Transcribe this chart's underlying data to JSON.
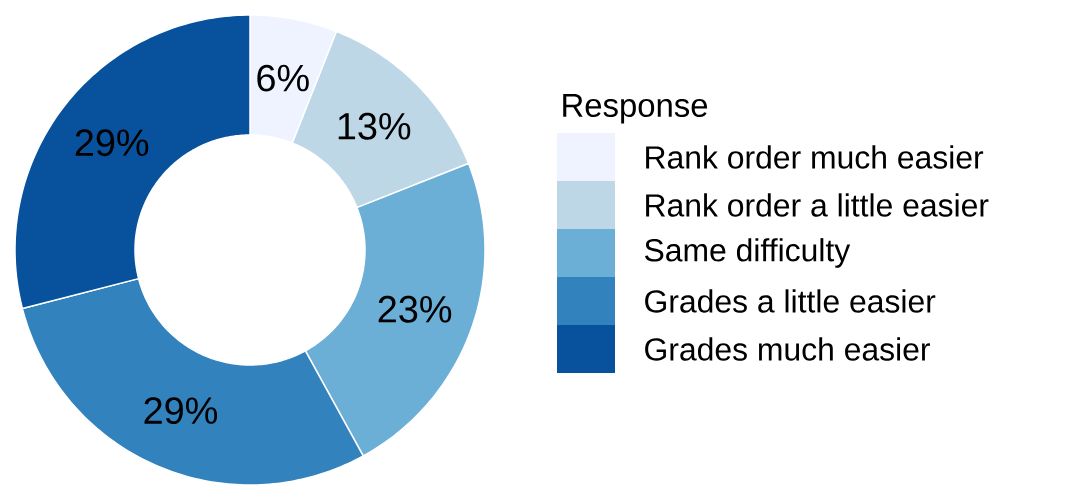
{
  "chart_data": {
    "type": "donut",
    "legend_title": "Response",
    "categories": [
      "Rank order much easier",
      "Rank order a little easier",
      "Same difficulty",
      "Grades a little easier",
      "Grades much easier"
    ],
    "values": [
      6,
      13,
      23,
      29,
      29
    ],
    "colors": [
      "#eff3ff",
      "#bdd7e7",
      "#6baed6",
      "#3182bd",
      "#08519c"
    ],
    "value_labels": [
      "6%",
      "13%",
      "23%",
      "29%",
      "29%"
    ],
    "legend": "right"
  }
}
